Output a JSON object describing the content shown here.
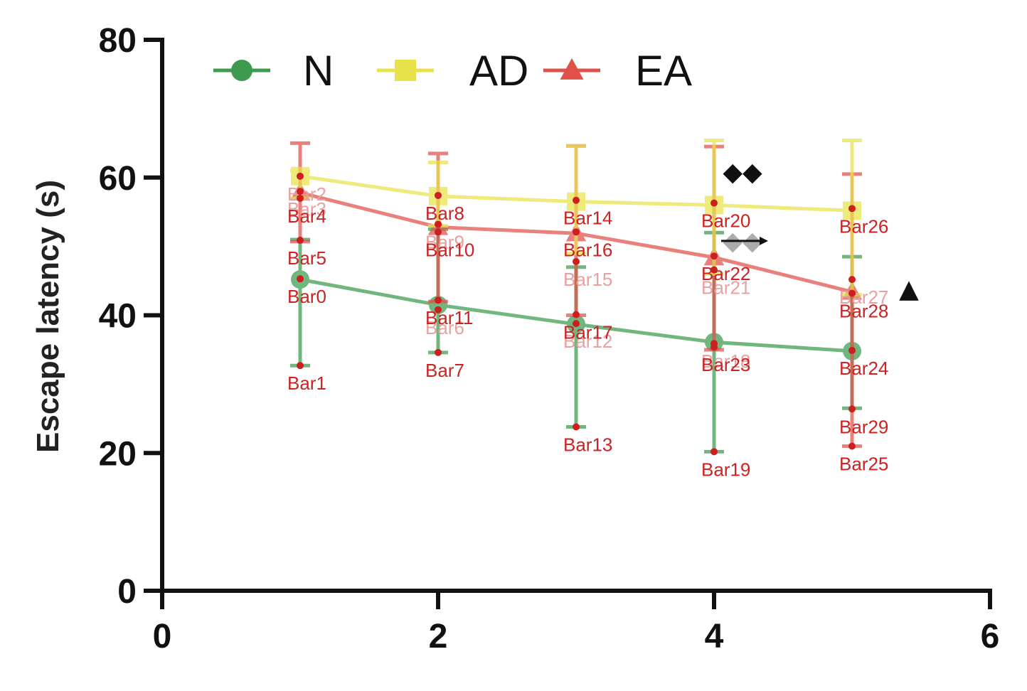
{
  "chart_data": {
    "type": "line",
    "title": "",
    "xlabel": "",
    "ylabel": "Escape latency (s)",
    "xlim": [
      0,
      6
    ],
    "ylim": [
      0,
      80
    ],
    "x_ticks": [
      "0",
      "2",
      "4",
      "6"
    ],
    "y_ticks": [
      "0",
      "20",
      "40",
      "60",
      "80"
    ],
    "legend_position": "top-left",
    "series": [
      {
        "name": "N",
        "color": "#3d9a4f",
        "marker": "circle",
        "x": [
          1,
          2,
          3,
          4,
          5
        ],
        "y": [
          45.2,
          41.5,
          38.7,
          36.1,
          34.8
        ],
        "err_upper": [
          51.0,
          52.5,
          47.0,
          52.0,
          48.5
        ],
        "err_lower": [
          32.7,
          34.6,
          23.8,
          20.2,
          26.5
        ]
      },
      {
        "name": "AD",
        "color": "#e8e24a",
        "marker": "square",
        "x": [
          1,
          2,
          3,
          4,
          5
        ],
        "y": [
          60.2,
          57.3,
          56.5,
          56.0,
          55.2
        ],
        "err_upper": [
          61.0,
          62.2,
          64.6,
          65.4,
          65.4
        ],
        "err_lower": [
          57.0,
          53.0,
          49.0,
          46.0,
          43.0
        ]
      },
      {
        "name": "EA",
        "color": "#e0514a",
        "marker": "triangle",
        "x": [
          1,
          2,
          3,
          4,
          5
        ],
        "y": [
          57.8,
          52.8,
          51.9,
          48.4,
          43.4
        ],
        "err_upper": [
          65.0,
          63.5,
          64.6,
          64.5,
          60.5
        ],
        "err_lower": [
          50.7,
          42.0,
          40.0,
          35.0,
          21.0
        ]
      }
    ],
    "significance": [
      {
        "symbol": "◆◆",
        "x": 4,
        "y": 60.8
      },
      {
        "symbol": "◆◆",
        "x": 4,
        "y": 50.8
      },
      {
        "symbol": "▲",
        "x": 5,
        "y": 43.8
      }
    ],
    "annotations": [
      {
        "text": "Bar0",
        "x": 1,
        "y": 45.3
      },
      {
        "text": "Bar1",
        "x": 1,
        "y": 32.7
      },
      {
        "text": "Bar2",
        "x": 1,
        "y": 60.2,
        "faint": true
      },
      {
        "text": "Bar3",
        "x": 1,
        "y": 58.0,
        "faint": true
      },
      {
        "text": "Bar4",
        "x": 1,
        "y": 57.0
      },
      {
        "text": "Bar5",
        "x": 1,
        "y": 50.9
      },
      {
        "text": "Bar6",
        "x": 2,
        "y": 40.8,
        "faint": true
      },
      {
        "text": "Bar7",
        "x": 2,
        "y": 34.6
      },
      {
        "text": "Bar8",
        "x": 2,
        "y": 57.4
      },
      {
        "text": "Bar9",
        "x": 2,
        "y": 53.2,
        "faint": true
      },
      {
        "text": "Bar10",
        "x": 2,
        "y": 52.1
      },
      {
        "text": "Bar11",
        "x": 2,
        "y": 42.2
      },
      {
        "text": "Bar12",
        "x": 3,
        "y": 38.8,
        "faint": true
      },
      {
        "text": "Bar13",
        "x": 3,
        "y": 23.8
      },
      {
        "text": "Bar14",
        "x": 3,
        "y": 56.7
      },
      {
        "text": "Bar15",
        "x": 3,
        "y": 47.8,
        "faint": true
      },
      {
        "text": "Bar16",
        "x": 3,
        "y": 52.1
      },
      {
        "text": "Bar17",
        "x": 3,
        "y": 40.1
      },
      {
        "text": "Bar18",
        "x": 4,
        "y": 35.9,
        "faint": true
      },
      {
        "text": "Bar19",
        "x": 4,
        "y": 20.2
      },
      {
        "text": "Bar20",
        "x": 4,
        "y": 56.3
      },
      {
        "text": "Bar21",
        "x": 4,
        "y": 46.6,
        "faint": true
      },
      {
        "text": "Bar22",
        "x": 4,
        "y": 48.6
      },
      {
        "text": "Bar23",
        "x": 4,
        "y": 35.4
      },
      {
        "text": "Bar24",
        "x": 5,
        "y": 34.9
      },
      {
        "text": "Bar25",
        "x": 5,
        "y": 21.0
      },
      {
        "text": "Bar26",
        "x": 5,
        "y": 55.5
      },
      {
        "text": "Bar27",
        "x": 5,
        "y": 45.2,
        "faint": true
      },
      {
        "text": "Bar28",
        "x": 5,
        "y": 43.2
      },
      {
        "text": "Bar29",
        "x": 5,
        "y": 26.4
      }
    ]
  }
}
